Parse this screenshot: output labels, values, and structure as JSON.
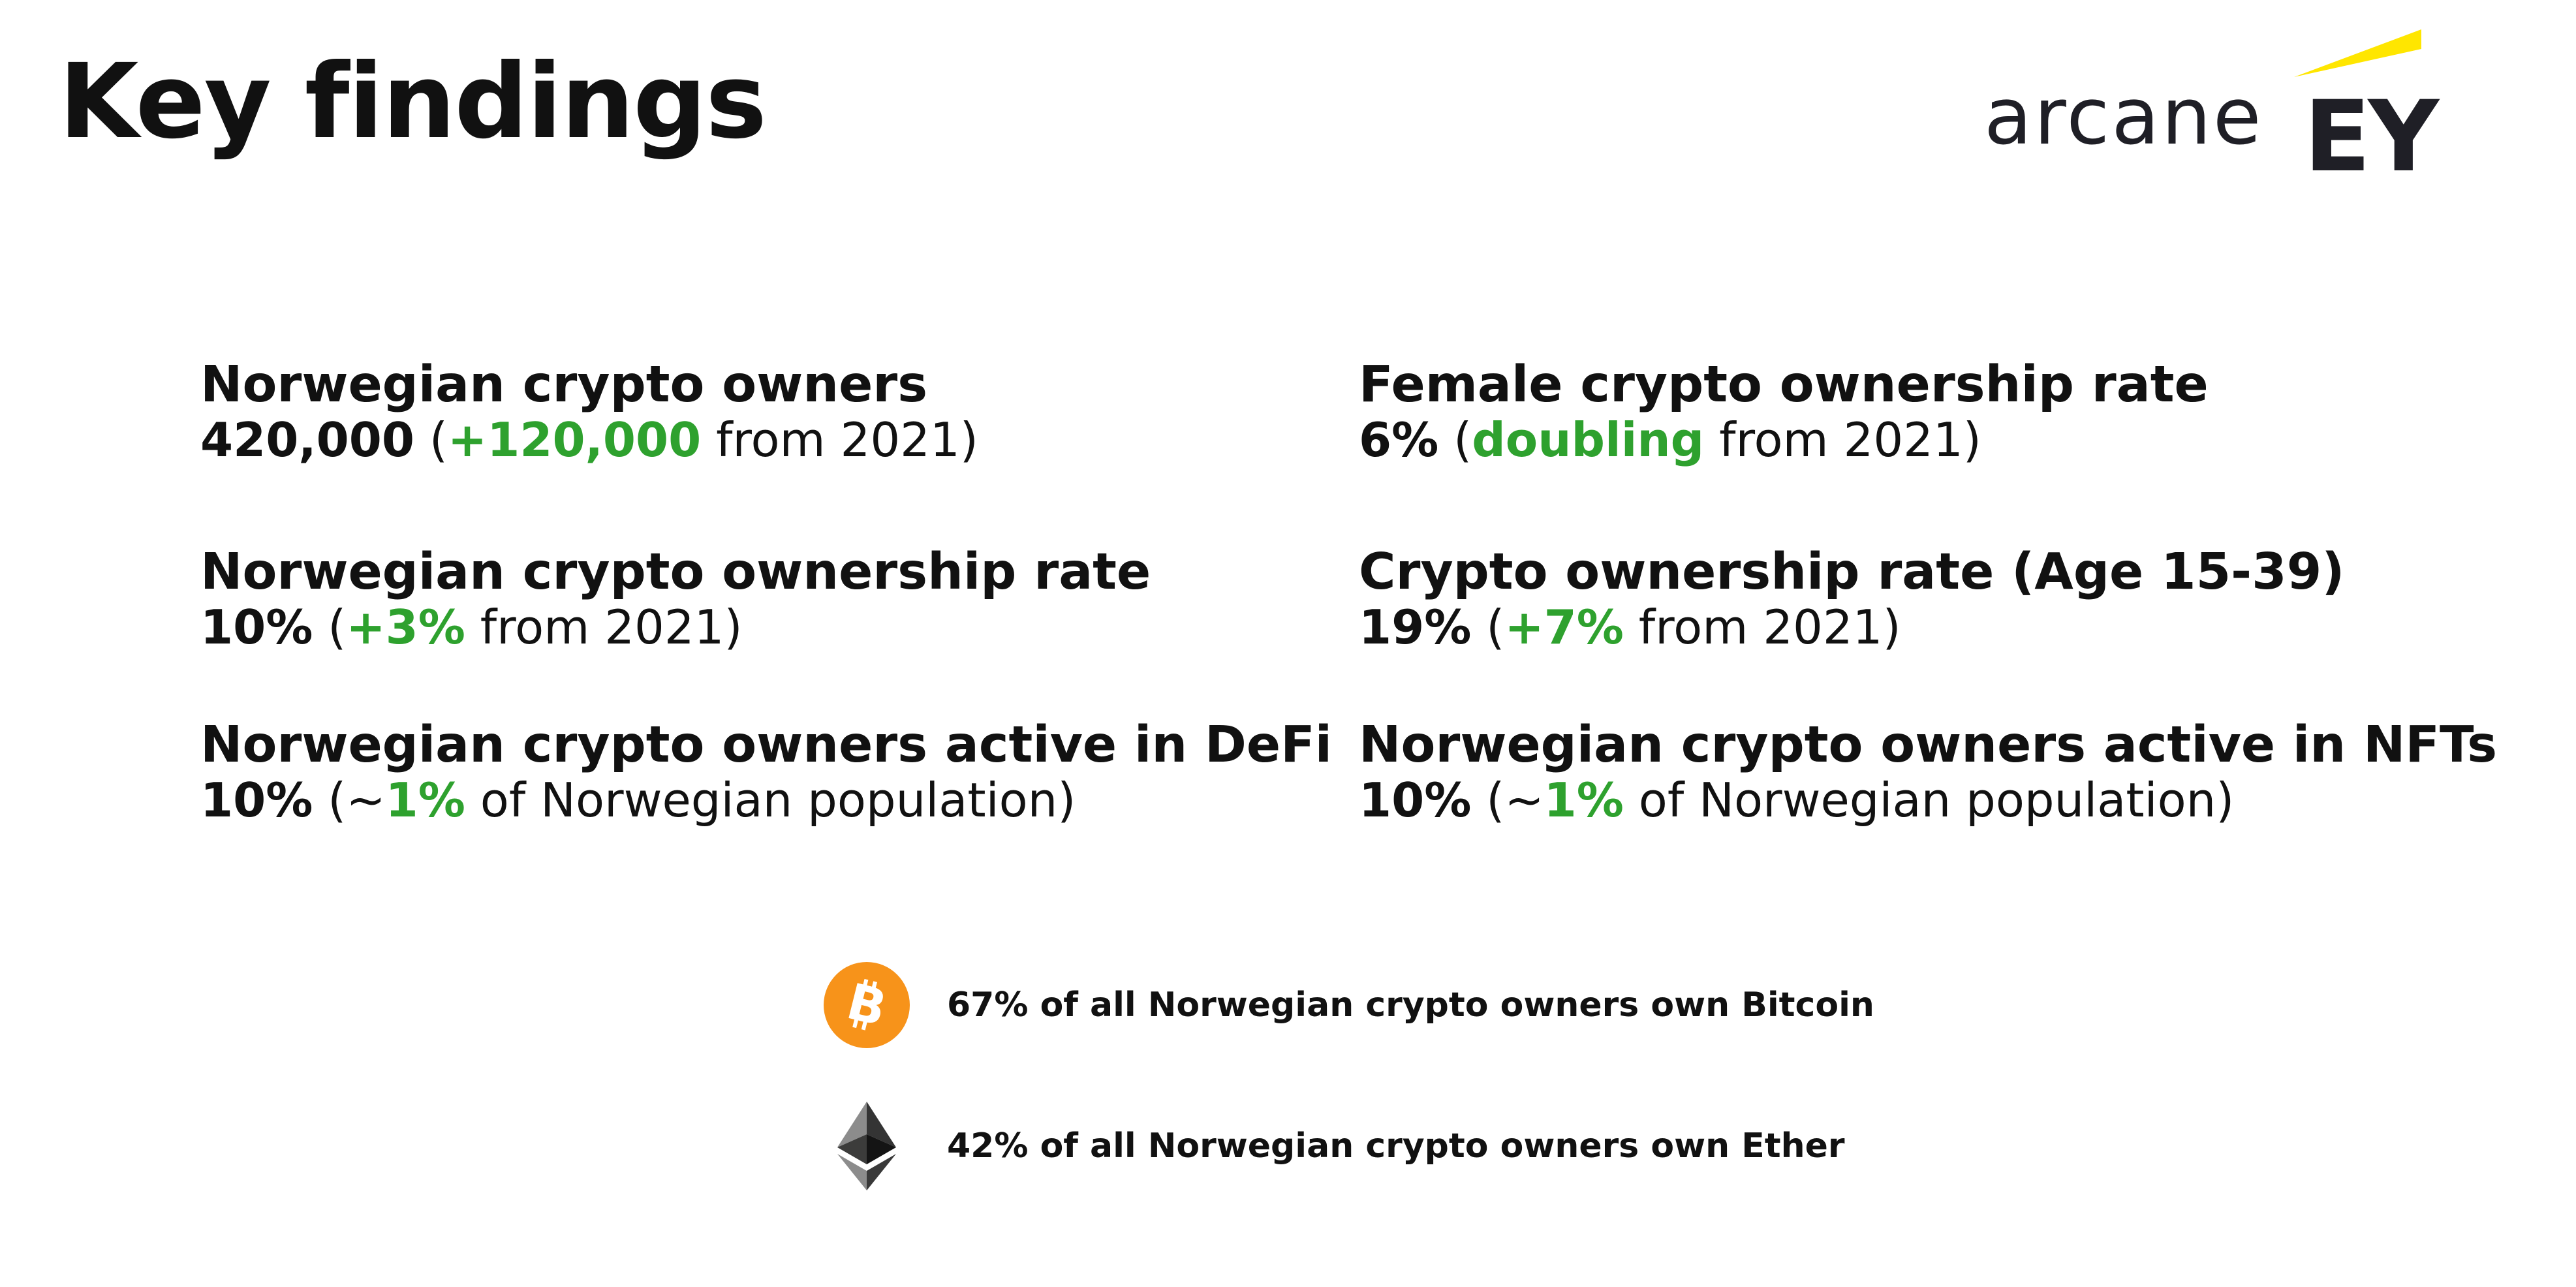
{
  "title": "Key findings",
  "logos": {
    "arcane": "arcane",
    "ey": "EY",
    "ey_accent_color": "#ffe600"
  },
  "findings": [
    {
      "label": "Norwegian crypto owners",
      "value": "420,000",
      "open": " (",
      "highlight": "+120,000",
      "suffix": " from 2021)"
    },
    {
      "label": "Norwegian crypto ownership rate",
      "value": "10%",
      "open": " (",
      "highlight": "+3%",
      "suffix": " from 2021)"
    },
    {
      "label": "Norwegian crypto owners active in DeFi",
      "value": "10%",
      "open": " (~",
      "highlight": "1%",
      "suffix": " of Norwegian population)"
    },
    {
      "label": "Female crypto ownership rate",
      "value": "6%",
      "open": " (",
      "highlight": "doubling",
      "suffix": " from 2021)"
    },
    {
      "label": "Crypto ownership rate (Age 15-39)",
      "value": "19%",
      "open": " (",
      "highlight": "+7%",
      "suffix": " from 2021)"
    },
    {
      "label": "Norwegian crypto owners active in NFTs",
      "value": "10%",
      "open": " (~",
      "highlight": "1%",
      "suffix": " of Norwegian population)"
    }
  ],
  "coins": [
    {
      "icon": "bitcoin-icon",
      "text": "67% of all Norwegian crypto owners own Bitcoin",
      "color": "#f7931a"
    },
    {
      "icon": "ethereum-icon",
      "text": "42% of all Norwegian crypto owners own Ether",
      "color": "#343434"
    }
  ],
  "colors": {
    "highlight": "#2ea12e",
    "text": "#111111"
  }
}
